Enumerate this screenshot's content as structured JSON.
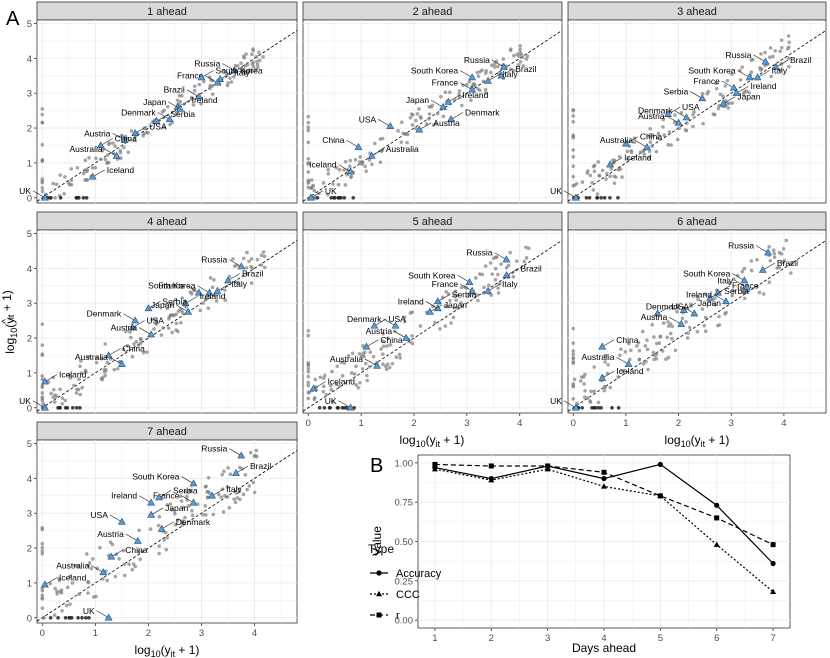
{
  "figure": {
    "panel_a_letter": "A",
    "panel_b_letter": "B"
  },
  "chart_data": [
    {
      "type": "scatter",
      "panel": "A",
      "xlabel_base": "log",
      "xlabel_sub": "10",
      "xlabel_rest": "(y",
      "xlabel_sub2": "it",
      "xlabel_end": " + 1)",
      "ylabel_base": "log",
      "ylabel_sub": "10",
      "ylabel_rest": "(y",
      "ylabel_hat": "^",
      "ylabel_sub2": "it",
      "ylabel_end": " + 1)",
      "xlim": [
        -0.1,
        4.8
      ],
      "ylim": [
        -0.15,
        5.1
      ],
      "x_ticks": [
        "0",
        "1",
        "2",
        "3",
        "4"
      ],
      "y_ticks": [
        "0",
        "1",
        "2",
        "3",
        "4",
        "5"
      ],
      "reference_line": "y = x (dashed)",
      "highlight_marker": "blue triangle",
      "background_marker": "grey point",
      "facets": [
        {
          "title": "1 ahead",
          "labeled": [
            {
              "label": "Russia",
              "x": 3.62,
              "y": 3.65
            },
            {
              "label": "Italy",
              "x": 3.35,
              "y": 3.4
            },
            {
              "label": "France",
              "x": 3.3,
              "y": 3.3
            },
            {
              "label": "South Korea",
              "x": 3.0,
              "y": 3.45
            },
            {
              "label": "Brazil",
              "x": 2.95,
              "y": 2.9
            },
            {
              "label": "Ireland",
              "x": 2.55,
              "y": 2.6
            },
            {
              "label": "Japan",
              "x": 2.6,
              "y": 2.55
            },
            {
              "label": "Serbia",
              "x": 2.15,
              "y": 2.2
            },
            {
              "label": "Denmark",
              "x": 2.4,
              "y": 2.25
            },
            {
              "label": "USA",
              "x": 1.75,
              "y": 1.85
            },
            {
              "label": "Austria",
              "x": 1.55,
              "y": 1.65
            },
            {
              "label": "China",
              "x": 1.1,
              "y": 1.5
            },
            {
              "label": "Australia",
              "x": 1.4,
              "y": 1.2
            },
            {
              "label": "Iceland",
              "x": 0.95,
              "y": 0.6
            },
            {
              "label": "UK",
              "x": 0.05,
              "y": 0.0
            }
          ]
        },
        {
          "title": "2 ahead",
          "labeled": [
            {
              "label": "Russia",
              "x": 3.7,
              "y": 3.75
            },
            {
              "label": "Brazil",
              "x": 3.65,
              "y": 3.5
            },
            {
              "label": "South Korea",
              "x": 3.1,
              "y": 3.45
            },
            {
              "label": "Italy",
              "x": 3.4,
              "y": 3.35
            },
            {
              "label": "France",
              "x": 3.1,
              "y": 3.1
            },
            {
              "label": "Ireland",
              "x": 2.65,
              "y": 2.75
            },
            {
              "label": "Japan",
              "x": 2.55,
              "y": 2.6
            },
            {
              "label": "Denmark",
              "x": 2.7,
              "y": 2.25
            },
            {
              "label": "USA",
              "x": 1.55,
              "y": 2.05
            },
            {
              "label": "Austria",
              "x": 2.1,
              "y": 1.95
            },
            {
              "label": "China",
              "x": 0.95,
              "y": 1.45
            },
            {
              "label": "Australia",
              "x": 1.2,
              "y": 1.2
            },
            {
              "label": "Iceland",
              "x": 0.8,
              "y": 0.75
            },
            {
              "label": "UK",
              "x": 0.05,
              "y": 0.0
            }
          ]
        },
        {
          "title": "3 ahead",
          "labeled": [
            {
              "label": "Russia",
              "x": 3.65,
              "y": 3.9
            },
            {
              "label": "Brazil",
              "x": 3.85,
              "y": 3.75
            },
            {
              "label": "South Korea",
              "x": 3.35,
              "y": 3.45
            },
            {
              "label": "Italy",
              "x": 3.5,
              "y": 3.45
            },
            {
              "label": "France",
              "x": 3.05,
              "y": 3.15
            },
            {
              "label": "Ireland",
              "x": 3.1,
              "y": 3.0
            },
            {
              "label": "Serbia",
              "x": 2.45,
              "y": 2.85
            },
            {
              "label": "Japan",
              "x": 2.85,
              "y": 2.7
            },
            {
              "label": "Denmark",
              "x": 2.15,
              "y": 2.3
            },
            {
              "label": "USA",
              "x": 1.8,
              "y": 2.4
            },
            {
              "label": "Austria",
              "x": 2.0,
              "y": 2.15
            },
            {
              "label": "China",
              "x": 1.0,
              "y": 1.55
            },
            {
              "label": "Australia",
              "x": 1.4,
              "y": 1.45
            },
            {
              "label": "Iceland",
              "x": 0.7,
              "y": 0.95
            },
            {
              "label": "UK",
              "x": 0.05,
              "y": 0.0
            }
          ]
        },
        {
          "title": "4 ahead",
          "labeled": [
            {
              "label": "Russia",
              "x": 3.75,
              "y": 4.05
            },
            {
              "label": "Brazil",
              "x": 3.5,
              "y": 3.65
            },
            {
              "label": "South Korea",
              "x": 3.15,
              "y": 3.3
            },
            {
              "label": "Italy",
              "x": 3.3,
              "y": 3.35
            },
            {
              "label": "France",
              "x": 2.95,
              "y": 3.3
            },
            {
              "label": "Ireland",
              "x": 2.7,
              "y": 3.0
            },
            {
              "label": "Japan",
              "x": 2.75,
              "y": 2.75
            },
            {
              "label": "Serbia",
              "x": 2.0,
              "y": 2.85
            },
            {
              "label": "Denmark",
              "x": 1.75,
              "y": 2.5
            },
            {
              "label": "USA",
              "x": 1.7,
              "y": 2.3
            },
            {
              "label": "Austria",
              "x": 2.05,
              "y": 2.1
            },
            {
              "label": "China",
              "x": 1.25,
              "y": 1.5
            },
            {
              "label": "Australia",
              "x": 1.5,
              "y": 1.25
            },
            {
              "label": "Iceland",
              "x": 0.05,
              "y": 0.75
            },
            {
              "label": "UK",
              "x": 0.05,
              "y": 0.0
            }
          ]
        },
        {
          "title": "5 ahead",
          "labeled": [
            {
              "label": "Russia",
              "x": 3.75,
              "y": 4.25
            },
            {
              "label": "Brazil",
              "x": 3.75,
              "y": 3.8
            },
            {
              "label": "South Korea",
              "x": 3.05,
              "y": 3.6
            },
            {
              "label": "Italy",
              "x": 3.4,
              "y": 3.35
            },
            {
              "label": "France",
              "x": 3.1,
              "y": 3.35
            },
            {
              "label": "Serbia",
              "x": 2.45,
              "y": 3.05
            },
            {
              "label": "Ireland",
              "x": 2.45,
              "y": 2.85
            },
            {
              "label": "Japan",
              "x": 2.3,
              "y": 2.75
            },
            {
              "label": "Denmark",
              "x": 1.65,
              "y": 2.35
            },
            {
              "label": "USA",
              "x": 1.25,
              "y": 2.35
            },
            {
              "label": "Austria",
              "x": 1.85,
              "y": 2.0
            },
            {
              "label": "China",
              "x": 1.1,
              "y": 1.75
            },
            {
              "label": "Australia",
              "x": 1.3,
              "y": 1.2
            },
            {
              "label": "Iceland",
              "x": 0.1,
              "y": 0.55
            },
            {
              "label": "UK",
              "x": 0.8,
              "y": 0.0
            }
          ]
        },
        {
          "title": "6 ahead",
          "labeled": [
            {
              "label": "Russia",
              "x": 3.7,
              "y": 4.45
            },
            {
              "label": "Brazil",
              "x": 3.6,
              "y": 3.95
            },
            {
              "label": "South Korea",
              "x": 3.25,
              "y": 3.65
            },
            {
              "label": "France",
              "x": 2.75,
              "y": 3.3
            },
            {
              "label": "Italy",
              "x": 3.3,
              "y": 3.45
            },
            {
              "label": "Serbia",
              "x": 2.6,
              "y": 3.15
            },
            {
              "label": "Ireland",
              "x": 2.9,
              "y": 3.05
            },
            {
              "label": "Japan",
              "x": 2.1,
              "y": 2.8
            },
            {
              "label": "Denmark",
              "x": 2.3,
              "y": 2.7
            },
            {
              "label": "USA",
              "x": 1.6,
              "y": 2.7
            },
            {
              "label": "Austria",
              "x": 2.05,
              "y": 2.4
            },
            {
              "label": "China",
              "x": 0.55,
              "y": 1.75
            },
            {
              "label": "Australia",
              "x": 1.05,
              "y": 1.25
            },
            {
              "label": "Iceland",
              "x": 0.55,
              "y": 0.85
            },
            {
              "label": "UK",
              "x": 0.05,
              "y": 0.0
            }
          ]
        },
        {
          "title": "7 ahead",
          "labeled": [
            {
              "label": "Russia",
              "x": 3.75,
              "y": 4.65
            },
            {
              "label": "Brazil",
              "x": 3.65,
              "y": 4.15
            },
            {
              "label": "South Korea",
              "x": 2.85,
              "y": 3.85
            },
            {
              "label": "Italy",
              "x": 3.2,
              "y": 3.5
            },
            {
              "label": "France",
              "x": 2.85,
              "y": 3.3
            },
            {
              "label": "Serbia",
              "x": 2.2,
              "y": 3.45
            },
            {
              "label": "Ireland",
              "x": 2.05,
              "y": 3.3
            },
            {
              "label": "Japan",
              "x": 2.05,
              "y": 2.95
            },
            {
              "label": "USA",
              "x": 1.5,
              "y": 2.75
            },
            {
              "label": "Denmark",
              "x": 2.25,
              "y": 2.55
            },
            {
              "label": "Austria",
              "x": 1.8,
              "y": 2.2
            },
            {
              "label": "China",
              "x": 1.3,
              "y": 1.75
            },
            {
              "label": "Australia",
              "x": 1.15,
              "y": 1.3
            },
            {
              "label": "Iceland",
              "x": 0.05,
              "y": 0.95
            },
            {
              "label": "UK",
              "x": 1.25,
              "y": 0.0
            }
          ]
        }
      ]
    },
    {
      "type": "line",
      "panel": "B",
      "xlabel": "Days ahead",
      "ylabel": "Value",
      "x": [
        1,
        2,
        3,
        4,
        5,
        6,
        7
      ],
      "xlim": [
        0.7,
        7.3
      ],
      "ylim": [
        -0.05,
        1.05
      ],
      "x_ticks": [
        "1",
        "2",
        "3",
        "4",
        "5",
        "6",
        "7"
      ],
      "y_ticks": [
        "0.00",
        "0.25",
        "0.50",
        "0.75",
        "1.00"
      ],
      "grid": true,
      "legend_position": "left",
      "legend_title": "Type",
      "series": [
        {
          "name": "Accuracy",
          "values": [
            0.97,
            0.9,
            0.98,
            0.9,
            0.99,
            0.73,
            0.36
          ],
          "marker": "circle",
          "dash": "solid"
        },
        {
          "name": "CCC",
          "values": [
            0.96,
            0.89,
            0.96,
            0.85,
            0.79,
            0.48,
            0.18
          ],
          "marker": "triangle",
          "dash": "dotted"
        },
        {
          "name": "r",
          "values": [
            0.99,
            0.98,
            0.98,
            0.94,
            0.79,
            0.65,
            0.48
          ],
          "marker": "square",
          "dash": "dashed"
        }
      ]
    }
  ]
}
